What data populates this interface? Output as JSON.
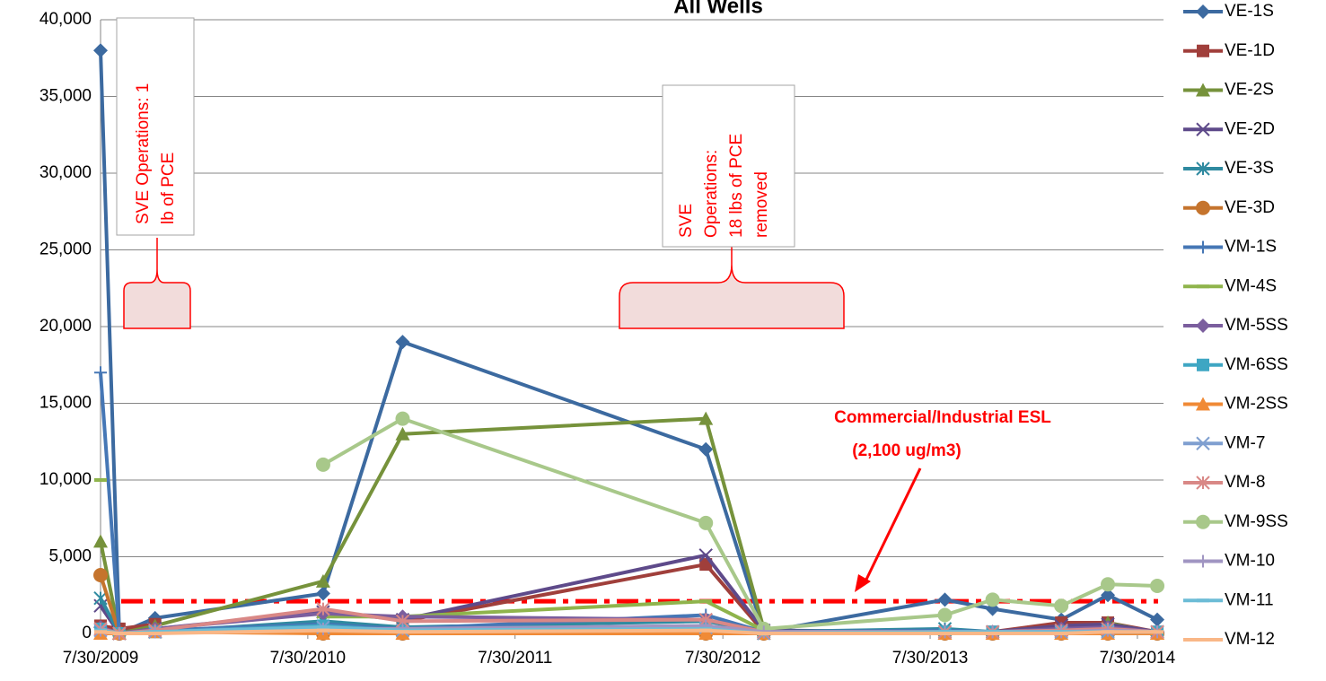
{
  "chart_data": {
    "type": "line",
    "title": "All Wells",
    "x": [
      "2009-07-30",
      "2009-09-01",
      "2009-11-03",
      "2010-08-26",
      "2011-01-13",
      "2012-06-30",
      "2012-10-10",
      "2013-08-25",
      "2013-11-17",
      "2014-03-18",
      "2014-06-08",
      "2014-09-03"
    ],
    "xlim": [
      "2009-07-30",
      "2014-09-14"
    ],
    "xticks": [
      {
        "value": "2009-07-30",
        "label": "7/30/2009"
      },
      {
        "value": "2010-07-30",
        "label": "7/30/2010"
      },
      {
        "value": "2011-07-30",
        "label": "7/30/2011"
      },
      {
        "value": "2012-07-30",
        "label": "7/30/2012"
      },
      {
        "value": "2013-07-30",
        "label": "7/30/2013"
      },
      {
        "value": "2014-07-30",
        "label": "7/30/2014"
      }
    ],
    "ylim": [
      0,
      40000
    ],
    "yticks": [
      0,
      {
        "value": 5000,
        "label": "5,000"
      },
      {
        "value": 10000,
        "label": "10,000"
      },
      {
        "value": 15000,
        "label": "15,000"
      },
      {
        "value": 20000,
        "label": "20,000"
      },
      {
        "value": 25000,
        "label": "25,000"
      },
      {
        "value": 30000,
        "label": "30,000"
      },
      {
        "value": 35000,
        "label": "35,000"
      },
      {
        "value": 40000,
        "label": "40,000"
      }
    ],
    "grid": true,
    "legend": "right",
    "series": [
      {
        "name": "VE-1S",
        "color": "#3c6aa0",
        "marker": "diamond",
        "values": [
          38000,
          0,
          1000,
          2600,
          19000,
          12000,
          100,
          2200,
          1600,
          900,
          2500,
          900
        ]
      },
      {
        "name": "VE-1D",
        "color": "#a03f3b",
        "marker": "square",
        "values": [
          500,
          300,
          600,
          null,
          800,
          4500,
          100,
          100,
          100,
          700,
          700,
          100
        ]
      },
      {
        "name": "VE-2S",
        "color": "#76923b",
        "marker": "triangle",
        "values": [
          6000,
          0,
          500,
          3400,
          13000,
          14000,
          300,
          null,
          null,
          null,
          700,
          0
        ]
      },
      {
        "name": "VE-2D",
        "color": "#5e4a8a",
        "marker": "x",
        "values": [
          1800,
          0,
          300,
          1400,
          900,
          5100,
          200,
          100,
          100,
          500,
          600,
          100
        ]
      },
      {
        "name": "VE-3S",
        "color": "#2f8aa0",
        "marker": "asterisk",
        "values": [
          2300,
          0,
          100,
          800,
          400,
          800,
          100,
          300,
          100,
          200,
          300,
          100
        ]
      },
      {
        "name": "VE-3D",
        "color": "#c5742d",
        "marker": "circle",
        "values": [
          3800,
          0,
          200,
          0,
          0,
          0,
          0,
          0,
          0,
          0,
          0,
          0
        ]
      },
      {
        "name": "VM-1S",
        "color": "#4677b5",
        "marker": "plus",
        "values": [
          17000,
          0,
          200,
          600,
          300,
          1200,
          100,
          200,
          100,
          200,
          300,
          100
        ]
      },
      {
        "name": "VM-4S",
        "color": "#8fb44c",
        "marker": "dash",
        "values": [
          10000,
          null,
          null,
          1100,
          1100,
          2100,
          200,
          null,
          null,
          null,
          null,
          null
        ]
      },
      {
        "name": "VM-5SS",
        "color": "#7b5e9e",
        "marker": "diamond",
        "values": [
          400,
          0,
          300,
          1300,
          1100,
          900,
          100,
          100,
          100,
          300,
          400,
          100
        ]
      },
      {
        "name": "VM-6SS",
        "color": "#3ea6c3",
        "marker": "square",
        "values": [
          300,
          0,
          100,
          500,
          200,
          300,
          0,
          100,
          100,
          100,
          200,
          100
        ]
      },
      {
        "name": "VM-2SS",
        "color": "#f08a36",
        "marker": "triangle",
        "values": [
          0,
          0,
          100,
          0,
          0,
          0,
          0,
          0,
          0,
          0,
          0,
          0
        ]
      },
      {
        "name": "VM-7",
        "color": "#7f9fd0",
        "marker": "x",
        "values": [
          200,
          0,
          100,
          400,
          200,
          400,
          0,
          100,
          100,
          100,
          100,
          100
        ]
      },
      {
        "name": "VM-8",
        "color": "#d98886",
        "marker": "asterisk",
        "values": [
          300,
          0,
          200,
          1600,
          800,
          900,
          100,
          100,
          100,
          200,
          300,
          100
        ]
      },
      {
        "name": "VM-9SS",
        "color": "#a8c88a",
        "marker": "circle",
        "values": [
          null,
          null,
          null,
          11000,
          14000,
          7200,
          300,
          1200,
          2200,
          1800,
          3200,
          3100
        ]
      },
      {
        "name": "VM-10",
        "color": "#a095c2",
        "marker": "plus",
        "values": [
          200,
          0,
          100,
          300,
          300,
          500,
          100,
          100,
          100,
          100,
          200,
          100
        ]
      },
      {
        "name": "VM-11",
        "color": "#6cbcd6",
        "marker": "dash",
        "values": [
          200,
          0,
          100,
          400,
          200,
          300,
          0,
          100,
          100,
          100,
          100,
          100
        ]
      },
      {
        "name": "VM-12",
        "color": "#f9b787",
        "marker": "dash",
        "values": [
          100,
          0,
          0,
          200,
          100,
          200,
          0,
          0,
          0,
          0,
          100,
          100
        ]
      }
    ],
    "reference_line": {
      "value": 2100,
      "color": "#ff0000"
    },
    "annotations": [
      {
        "lines": [
          "SVE Operations: 1",
          "lb of PCE"
        ]
      },
      {
        "lines": [
          "SVE",
          "Operations:",
          "18 lbs of PCE",
          "removed"
        ]
      },
      {
        "lines": [
          "Commercial/Industrial ESL",
          "(2,100 ug/m3)"
        ]
      }
    ]
  }
}
